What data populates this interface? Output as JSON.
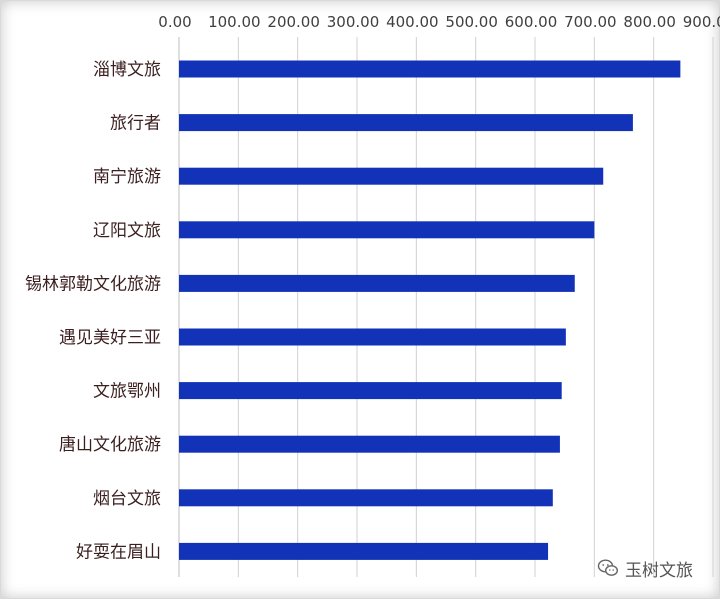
{
  "chart_data": {
    "type": "bar",
    "orientation": "horizontal",
    "categories": [
      "淄博文旅",
      "旅行者",
      "南宁旅游",
      "辽阳文旅",
      "锡林郭勒文化旅游",
      "遇见美好三亚",
      "文旅鄂州",
      "唐山文化旅游",
      "烟台文旅",
      "好耍在眉山"
    ],
    "values": [
      845,
      765,
      715,
      700,
      667,
      652,
      645,
      642,
      630,
      622
    ],
    "xlim": [
      0,
      900
    ],
    "x_ticks": [
      "0.00",
      "100.00",
      "200.00",
      "300.00",
      "400.00",
      "500.00",
      "600.00",
      "700.00",
      "800.00",
      "900.00"
    ],
    "x_axis_position": "top",
    "grid": true,
    "bar_color": "#1232b8",
    "title": "",
    "xlabel": "",
    "ylabel": ""
  },
  "watermark": {
    "text": "玉树文旅",
    "icon": "wechat-icon"
  }
}
